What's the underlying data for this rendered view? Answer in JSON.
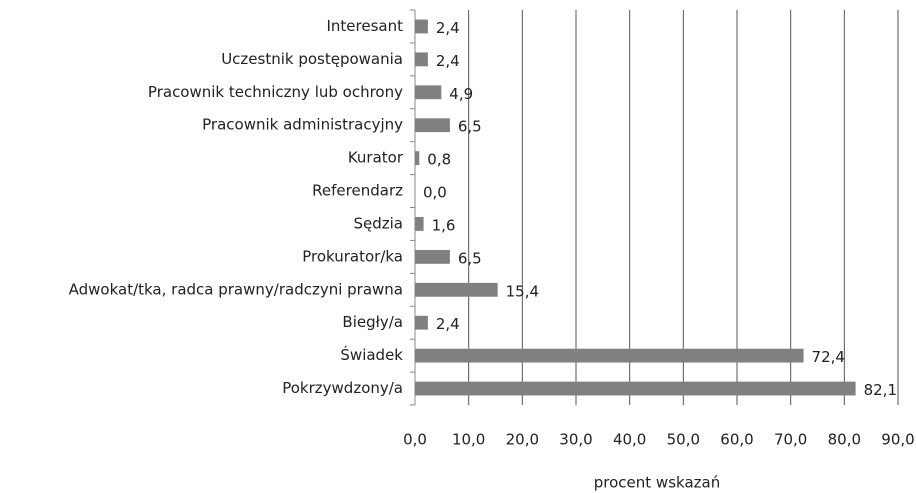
{
  "chart_data": {
    "type": "barh",
    "x_label": "procent wskazań",
    "categories": [
      "Interesant",
      "Uczestnik postępowania",
      "Pracownik techniczny lub ochrony",
      "Pracownik administracyjny",
      "Kurator",
      "Referendarz",
      "Sędzia",
      "Prokurator/ka",
      "Adwokat/tka, radca prawny/radczyni prawna",
      "Biegły/a",
      "Świadek",
      "Pokrzywdzony/a"
    ],
    "values": [
      2.4,
      2.4,
      4.9,
      6.5,
      0.8,
      0.0,
      1.6,
      6.5,
      15.4,
      2.4,
      72.4,
      82.1
    ],
    "value_labels": [
      "2,4",
      "2,4",
      "4,9",
      "6,5",
      "0,8",
      "0,0",
      "1,6",
      "6,5",
      "15,4",
      "2,4",
      "72,4",
      "82,1"
    ],
    "color": "#808080",
    "xlim": [
      0,
      90
    ],
    "xticks": [
      {
        "value": 0,
        "label": "0,0"
      },
      {
        "value": 10,
        "label": "10,0"
      },
      {
        "value": 20,
        "label": "20,0"
      },
      {
        "value": 30,
        "label": "30,0"
      },
      {
        "value": 40,
        "label": "40,0"
      },
      {
        "value": 50,
        "label": "50,0"
      },
      {
        "value": 60,
        "label": "60,0"
      },
      {
        "value": 70,
        "label": "70,0"
      },
      {
        "value": 80,
        "label": "80,0"
      },
      {
        "value": 90,
        "label": "90,0"
      }
    ],
    "grid": true
  }
}
